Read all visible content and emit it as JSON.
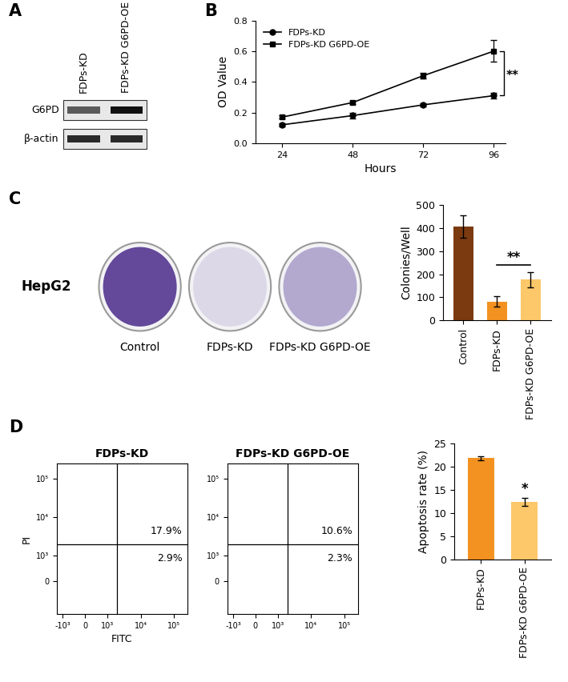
{
  "chart_data": [
    {
      "panel": "A",
      "type": "blot",
      "lanes": [
        "FDPs-KD",
        "FDPs-KD G6PD-OE"
      ],
      "rows": [
        "G6PD",
        "β-actin"
      ]
    },
    {
      "panel": "B",
      "type": "line",
      "x_label": "Hours",
      "y_label": "OD Value",
      "x": [
        24,
        48,
        72,
        96
      ],
      "xlim": [
        15,
        100
      ],
      "xticks": [
        24,
        48,
        72,
        96
      ],
      "ylim": [
        0,
        0.8
      ],
      "yticks": [
        {
          "value": 0,
          "label": "0.0"
        },
        0.2,
        0.4,
        0.6,
        0.8
      ],
      "legend": "upper left",
      "series": [
        {
          "name": "FDPs-KD",
          "color": "#000000",
          "marker": "circle",
          "values": [
            0.12,
            0.18,
            0.25,
            0.31
          ],
          "errors": [
            0.01,
            0.02,
            0.01,
            0.02
          ]
        },
        {
          "name": "FDPs-KD G6PD-OE",
          "color": "#000000",
          "marker": "square",
          "values": [
            0.17,
            0.265,
            0.44,
            0.6
          ],
          "errors": [
            0.01,
            0.01,
            0.02,
            0.07
          ]
        }
      ],
      "annotations": [
        {
          "text": "**",
          "between": [
            "FDPs-KD",
            "FDPs-KD G6PD-OE"
          ]
        }
      ]
    },
    {
      "panel": "C",
      "type": "plates",
      "label": "HepG2",
      "plates": [
        "Control",
        "FDPs-KD",
        "FDPs-KD G6PD-OE"
      ]
    },
    {
      "type": "bar",
      "y_label": "Colonies/Well",
      "categories": [
        "Control",
        "FDPs-KD",
        "FDPs-KD G6PD-OE"
      ],
      "values": [
        405,
        82,
        176
      ],
      "errors": [
        48,
        22,
        32
      ],
      "colors": [
        "#7b3a10",
        "#f39221",
        "#fcc86a"
      ],
      "ylim": [
        0,
        500
      ],
      "yticks": [
        0,
        100,
        200,
        300,
        400,
        500
      ],
      "annotations": [
        {
          "text": "**",
          "between": [
            "FDPs-KD",
            "FDPs-KD G6PD-OE"
          ]
        }
      ]
    },
    {
      "panel": "D",
      "type": "flow",
      "x_label": "FITC",
      "y_label": "PI",
      "xlim": [
        -1500,
        250000
      ],
      "ylim": [
        -1500,
        250000
      ],
      "xticks": [
        {
          "value": -1000,
          "label": "-10³"
        },
        0,
        {
          "value": 1000,
          "label": "10³"
        },
        {
          "value": 10000,
          "label": "10⁴"
        },
        {
          "value": 100000,
          "label": "10⁵"
        }
      ],
      "yticks": [
        0,
        {
          "value": 1000,
          "label": "10³"
        },
        {
          "value": 10000,
          "label": "10⁴"
        },
        {
          "value": 100000,
          "label": "10⁵"
        }
      ],
      "gate_x": 2000,
      "gate_y": 2000,
      "plots": [
        {
          "title": "FDPs-KD",
          "values": [
            17.9,
            2.9
          ],
          "value_labels": [
            "17.9%",
            "2.9%"
          ]
        },
        {
          "title": "FDPs-KD G6PD-OE",
          "values": [
            10.6,
            2.3
          ],
          "value_labels": [
            "10.6%",
            "2.3%"
          ]
        }
      ]
    },
    {
      "type": "bar",
      "y_label": "Apoptosis rate (%)",
      "categories": [
        "FDPs-KD",
        "FDPs-KD G6PD-OE"
      ],
      "values": [
        21.8,
        12.4
      ],
      "errors": [
        0.4,
        0.9
      ],
      "colors": [
        "#f39221",
        "#fcc86a"
      ],
      "ylim": [
        0,
        25
      ],
      "yticks": [
        0,
        5,
        10,
        15,
        20,
        25
      ],
      "annotations": [
        {
          "text": "*",
          "category": "FDPs-KD G6PD-OE"
        }
      ]
    }
  ]
}
